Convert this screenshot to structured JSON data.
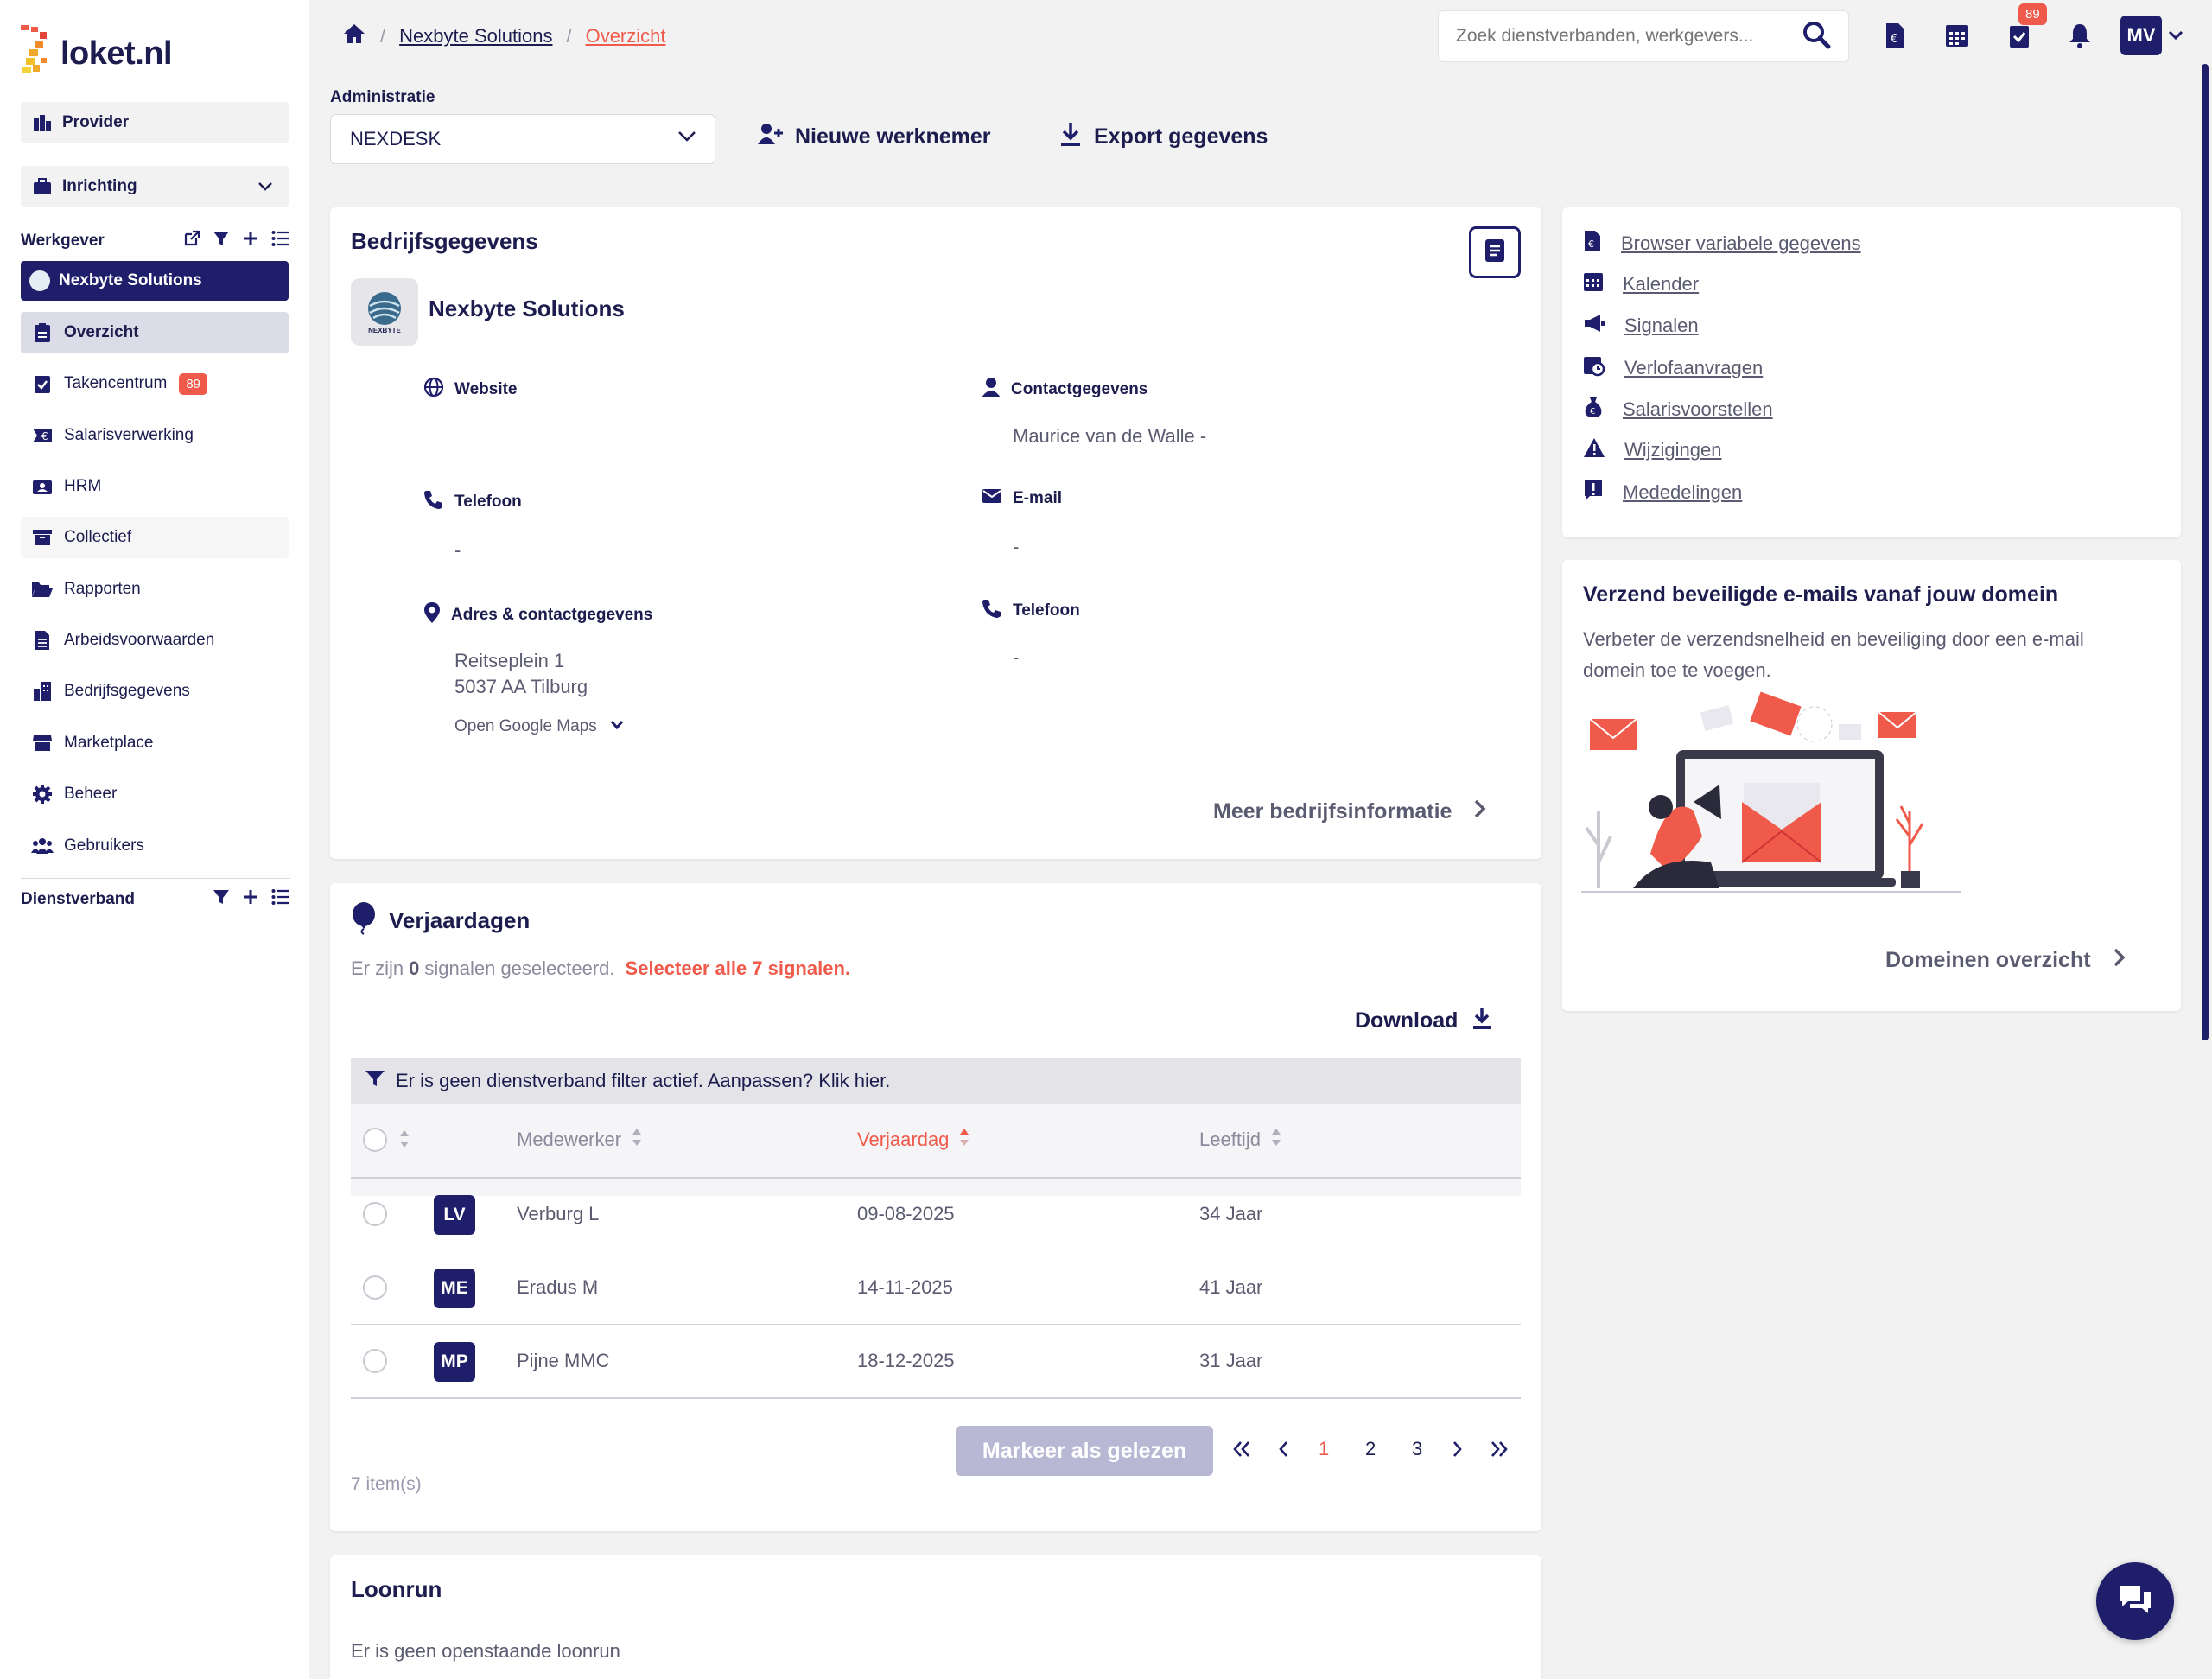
{
  "app": {
    "logo_text": "loket.nl"
  },
  "sidebar": {
    "provider_label": "Provider",
    "inrichting_label": "Inrichting",
    "werkgever_section": "Werkgever",
    "active_employer": "Nexbyte Solutions",
    "nav_items": [
      {
        "label": "Overzicht"
      },
      {
        "label": "Takencentrum",
        "badge": "89"
      },
      {
        "label": "Salarisverwerking"
      },
      {
        "label": "HRM"
      },
      {
        "label": "Collectief"
      },
      {
        "label": "Rapporten"
      },
      {
        "label": "Arbeidsvoorwaarden"
      },
      {
        "label": "Bedrijfsgegevens"
      },
      {
        "label": "Marketplace"
      },
      {
        "label": "Beheer"
      },
      {
        "label": "Gebruikers"
      }
    ],
    "dienstverband_section": "Dienstverband"
  },
  "breadcrumb": {
    "item1": "Nexbyte Solutions",
    "current": "Overzicht"
  },
  "search": {
    "placeholder": "Zoek dienstverbanden, werkgevers..."
  },
  "topbar": {
    "task_badge": "89",
    "avatar_initials": "MV"
  },
  "admin": {
    "label": "Administratie",
    "selected": "NEXDESK",
    "new_employee": "Nieuwe werknemer",
    "export": "Export gegevens"
  },
  "company": {
    "card_title": "Bedrijfsgegevens",
    "name": "Nexbyte Solutions",
    "logo_text": "NEXBYTE",
    "website_label": "Website",
    "contact_label": "Contactgegevens",
    "contact_value": "Maurice van de Walle -",
    "phone_label": "Telefoon",
    "phone_value": "-",
    "email_label": "E-mail",
    "email_value": "-",
    "address_label": "Adres & contactgegevens",
    "address_line1": "Reitseplein 1",
    "address_line2": "5037 AA Tilburg",
    "maps_label": "Open Google Maps",
    "phone2_label": "Telefoon",
    "phone2_value": "-",
    "more_label": "Meer bedrijfsinformatie"
  },
  "quicklinks": [
    {
      "label": "Browser variabele gegevens",
      "icon": "file-euro-icon"
    },
    {
      "label": "Kalender",
      "icon": "calendar-icon"
    },
    {
      "label": "Signalen",
      "icon": "megaphone-icon"
    },
    {
      "label": "Verlofaanvragen",
      "icon": "calendar-clock-icon"
    },
    {
      "label": "Salarisvoorstellen",
      "icon": "money-bag-icon"
    },
    {
      "label": "Wijzigingen",
      "icon": "warning-icon"
    },
    {
      "label": "Mededelingen",
      "icon": "exclamation-icon"
    }
  ],
  "promo": {
    "title": "Verzend beveiligde e-mails vanaf jouw domein",
    "text_line1": "Verbeter de verzendsnelheid en beveiliging door een e-mail",
    "text_line2": "domein toe te voegen.",
    "link": "Domeinen overzicht"
  },
  "birthdays": {
    "title": "Verjaardagen",
    "selection_pre": "Er zijn",
    "selection_count": "0",
    "selection_post": "signalen geselecteerd.",
    "select_all": "Selecteer alle 7 signalen.",
    "download": "Download",
    "filter_notice": "Er is geen dienstverband filter actief. Aanpassen? Klik hier.",
    "columns": [
      "Medewerker",
      "Verjaardag",
      "Leeftijd"
    ],
    "rows": [
      {
        "initials": "LV",
        "name": "Verburg L",
        "date": "09-08-2025",
        "age": "34 Jaar"
      },
      {
        "initials": "ME",
        "name": "Eradus M",
        "date": "14-11-2025",
        "age": "41 Jaar"
      },
      {
        "initials": "MP",
        "name": "Pijne MMC",
        "date": "18-12-2025",
        "age": "31 Jaar"
      }
    ],
    "mark_read": "Markeer als gelezen",
    "pages": [
      "1",
      "2",
      "3"
    ],
    "items_count": "7 item(s)"
  },
  "loonrun": {
    "title": "Loonrun",
    "text": "Er is geen openstaande loonrun"
  },
  "colors": {
    "navy": "#1e1e6b",
    "accent_red": "#f05a4b",
    "muted": "#5a5a70",
    "background": "#f2f2f3"
  }
}
